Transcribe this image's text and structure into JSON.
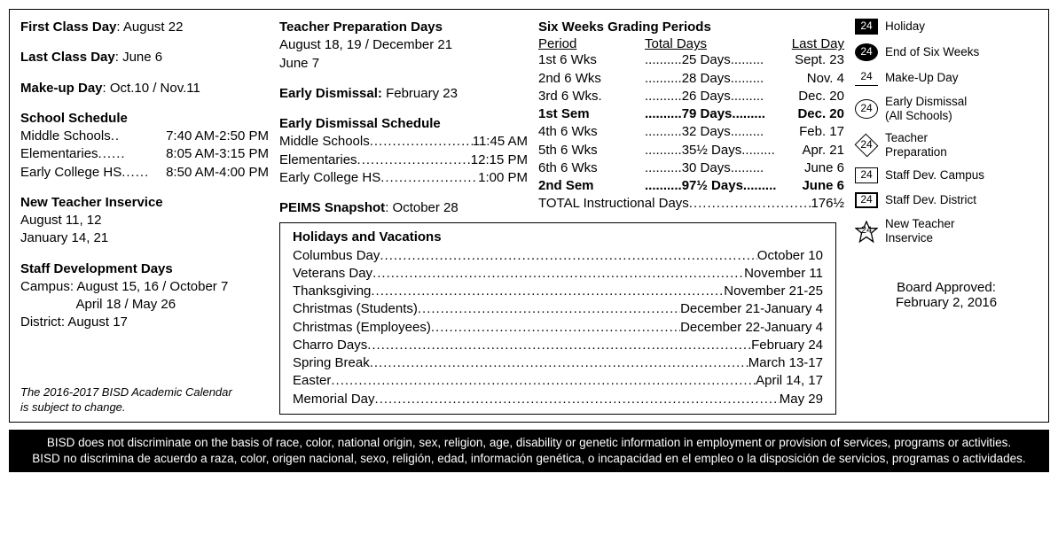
{
  "col1": {
    "first_class_label": "First Class Day",
    "first_class_value": ": August 22",
    "last_class_label": "Last Class Day",
    "last_class_value": ": June 6",
    "makeup_label": "Make-up Day",
    "makeup_value": ":  Oct.10 / Nov.11",
    "school_sched_title": "School Schedule",
    "school_sched_ms_l": "Middle Schools",
    "school_sched_ms_r": "7:40 AM-2:50 PM",
    "school_sched_el_l": "Elementaries",
    "school_sched_el_r": "8:05 AM-3:15 PM",
    "school_sched_hs_l": "Early College HS",
    "school_sched_hs_r": "8:50 AM-4:00 PM",
    "new_teacher_title": "New Teacher Inservice",
    "new_teacher_l1": "August 11, 12",
    "new_teacher_l2": "January 14, 21",
    "staff_dev_title": "Staff Development Days",
    "staff_dev_l1": "Campus: August 15, 16 / October 7",
    "staff_dev_l2": "               April 18 / May 26",
    "staff_dev_l3": "District: August 17",
    "note_l1": "The 2016-2017 BISD Academic Calendar",
    "note_l2": "is subject to change."
  },
  "col2": {
    "prep_title": "Teacher Preparation Days",
    "prep_l1": "August 18, 19 / December 21",
    "prep_l2": "June 7",
    "early_dis_label": "Early Dismissal:",
    "early_dis_value": " February 23",
    "early_sched_title": "Early Dismissal Schedule",
    "early_ms_l": "Middle Schools",
    "early_ms_r": "11:45 AM",
    "early_el_l": "Elementaries",
    "early_el_r": "12:15 PM",
    "early_hs_l": "Early College HS",
    "early_hs_r": "1:00 PM",
    "peims_label": "PEIMS Snapshot",
    "peims_value": ": October 28"
  },
  "grading": {
    "title": "Six Weeks Grading Periods",
    "h1": "Period",
    "h2": "Total Days",
    "h3": "Last Day",
    "rows": [
      {
        "p": "1st 6 Wks",
        "d": "25 Days",
        "l": "Sept. 23",
        "b": false
      },
      {
        "p": "2nd 6 Wks",
        "d": "28 Days",
        "l": "Nov. 4",
        "b": false
      },
      {
        "p": "3rd 6 Wks.",
        "d": "26 Days",
        "l": "Dec. 20",
        "b": false
      },
      {
        "p": "1st Sem",
        "d": "79 Days",
        "l": "Dec. 20",
        "b": true
      },
      {
        "p": "4th 6 Wks",
        "d": "32 Days",
        "l": "Feb. 17",
        "b": false
      },
      {
        "p": "5th 6 Wks",
        "d": "35½ Days",
        "l": "Apr. 21",
        "b": false
      },
      {
        "p": "6th 6 Wks",
        "d": "30 Days",
        "l": "June 6",
        "b": false
      },
      {
        "p": "2nd Sem",
        "d": "97½ Days",
        "l": "June 6",
        "b": true
      }
    ],
    "total_l": "TOTAL Instructional Days",
    "total_r": "176½"
  },
  "holidays": {
    "title": "Holidays and Vacations",
    "rows": [
      {
        "l": "Columbus Day",
        "r": "October 10"
      },
      {
        "l": "Veterans Day",
        "r": "November 11"
      },
      {
        "l": "Thanksgiving",
        "r": "November 21-25"
      },
      {
        "l": "Christmas (Students)",
        "r": "December 21-January 4"
      },
      {
        "l": "Christmas (Employees)",
        "r": "December 22-January 4"
      },
      {
        "l": "Charro Days",
        "r": "February 24"
      },
      {
        "l": "Spring Break",
        "r": "March 13-17"
      },
      {
        "l": "Easter",
        "r": "April 14, 17"
      },
      {
        "l": "Memorial Day",
        "r": "May 29"
      }
    ]
  },
  "legend": {
    "num": "24",
    "items": [
      {
        "style": "black-sq",
        "label": "Holiday"
      },
      {
        "style": "black-circ",
        "label": "End of Six Weeks"
      },
      {
        "style": "underline",
        "label": "Make-Up Day"
      },
      {
        "style": "circ-outline",
        "label": "Early Dismissal\n(All Schools)"
      },
      {
        "style": "diamond",
        "label": "Teacher\nPreparation"
      },
      {
        "style": "sq-outline",
        "label": "Staff Dev. Campus"
      },
      {
        "style": "sq-bold",
        "label": "Staff Dev. District"
      },
      {
        "style": "star",
        "label": "New Teacher\nInservice"
      }
    ],
    "board_l1": "Board Approved:",
    "board_l2": "February 2, 2016"
  },
  "disclaimer": {
    "l1": "BISD does not discriminate on the basis of race, color, national origin, sex, religion, age, disability or genetic information in employment or provision of services, programs or activities.",
    "l2": "BISD no discrimina de acuerdo a raza, color, origen nacional, sexo, religión, edad, información genética, o incapacidad en el empleo o la disposición de servicios, programas o actividades."
  },
  "dots_long": "...................................................................................................................."
}
